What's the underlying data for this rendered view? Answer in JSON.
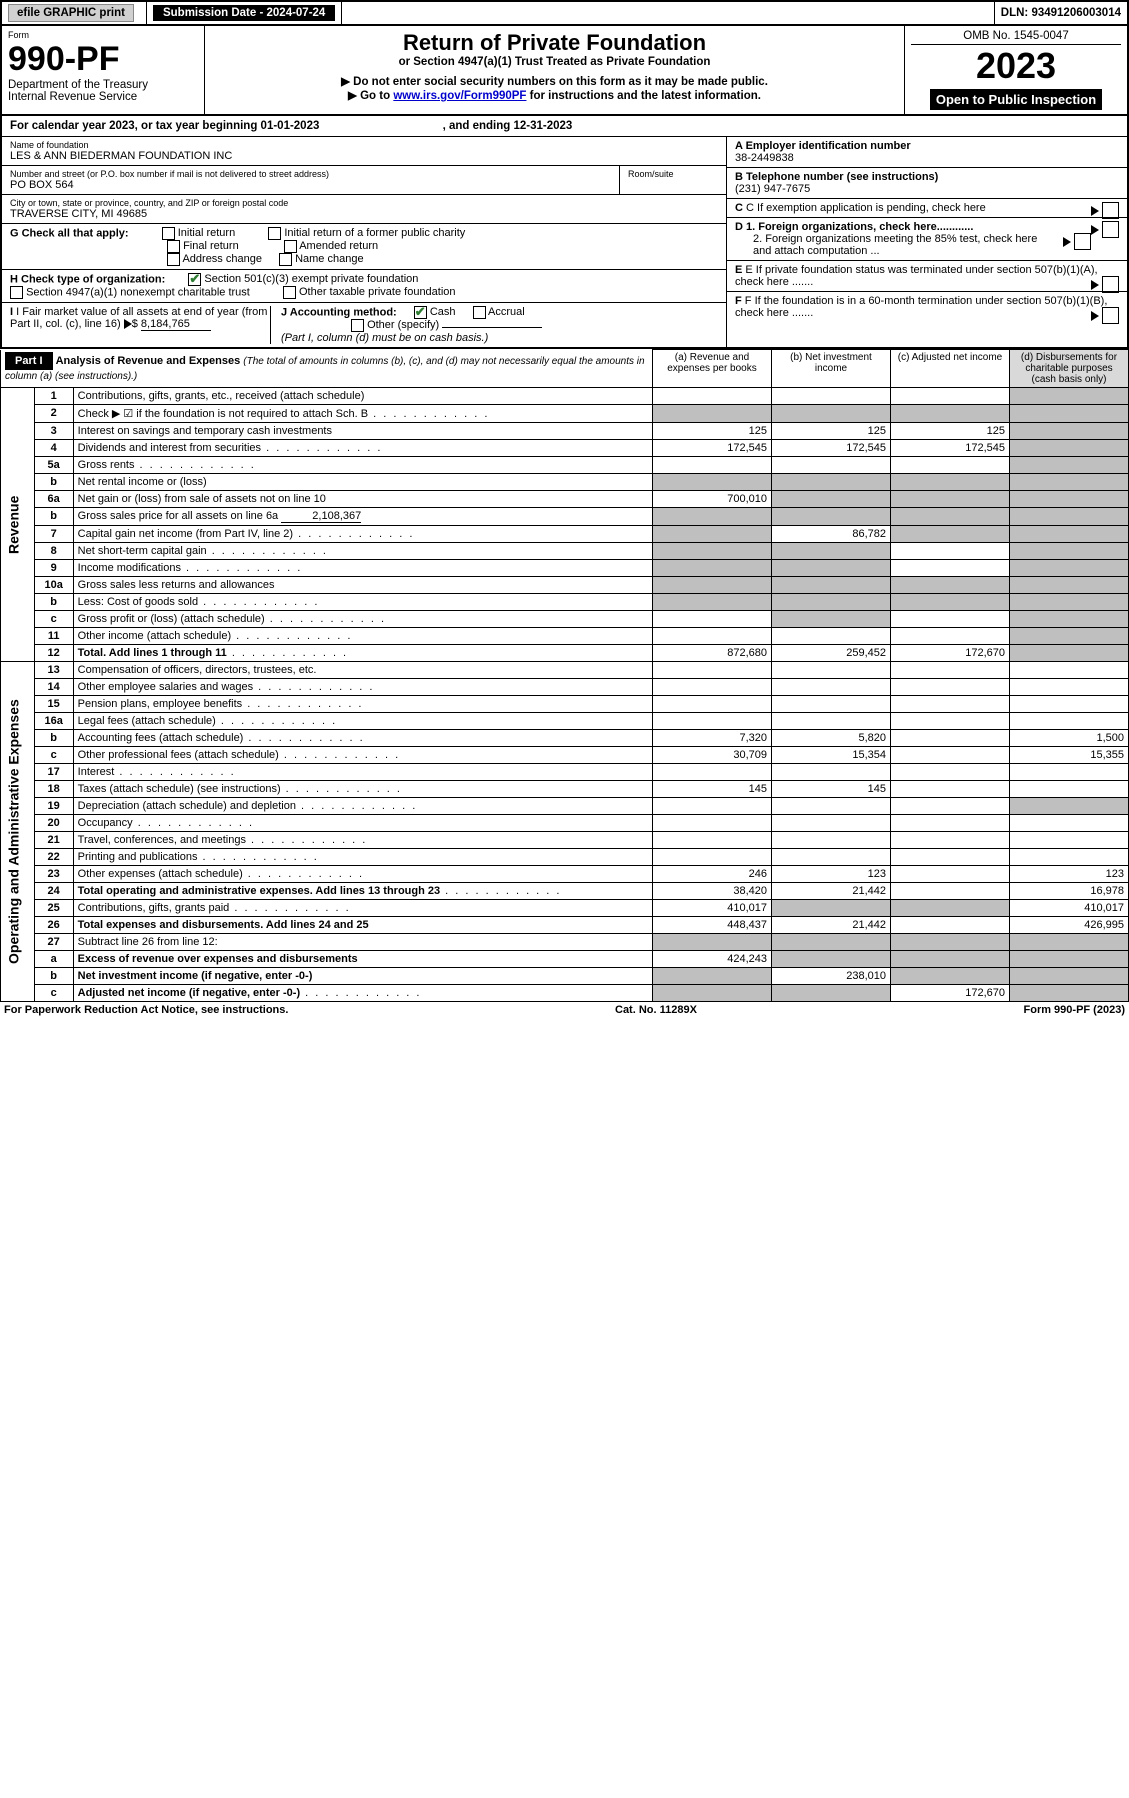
{
  "top": {
    "efile": "efile GRAPHIC print",
    "submission_label": "Submission Date - 2024-07-24",
    "dln": "DLN: 93491206003014"
  },
  "header": {
    "form_label": "Form",
    "form_no": "990-PF",
    "dept": "Department of the Treasury",
    "irs": "Internal Revenue Service",
    "title": "Return of Private Foundation",
    "subtitle": "or Section 4947(a)(1) Trust Treated as Private Foundation",
    "warn": "▶ Do not enter social security numbers on this form as it may be made public.",
    "goto_pre": "▶ Go to ",
    "goto_link": "www.irs.gov/Form990PF",
    "goto_post": " for instructions and the latest information.",
    "omb": "OMB No. 1545-0047",
    "year": "2023",
    "open": "Open to Public Inspection"
  },
  "cal": {
    "line_a": "For calendar year 2023, or tax year beginning 01-01-2023",
    "line_b": ", and ending 12-31-2023"
  },
  "left": {
    "name_label": "Name of foundation",
    "name": "LES & ANN BIEDERMAN FOUNDATION INC",
    "street_label": "Number and street (or P.O. box number if mail is not delivered to street address)",
    "street": "PO BOX 564",
    "room_label": "Room/suite",
    "city_label": "City or town, state or province, country, and ZIP or foreign postal code",
    "city": "TRAVERSE CITY, MI  49685",
    "g": "G Check all that apply:",
    "g_initial": "Initial return",
    "g_initial_former": "Initial return of a former public charity",
    "g_final": "Final return",
    "g_amended": "Amended return",
    "g_address": "Address change",
    "g_name": "Name change",
    "h": "H Check type of organization:",
    "h_501": "Section 501(c)(3) exempt private foundation",
    "h_4947": "Section 4947(a)(1) nonexempt charitable trust",
    "h_other": "Other taxable private foundation",
    "i": "I Fair market value of all assets at end of year (from Part II, col. (c), line 16)",
    "i_val": "8,184,765",
    "j": "J Accounting method:",
    "j_cash": "Cash",
    "j_accrual": "Accrual",
    "j_other": "Other (specify)",
    "j_note": "(Part I, column (d) must be on cash basis.)"
  },
  "right": {
    "a_label": "A Employer identification number",
    "a_val": "38-2449838",
    "b_label": "B Telephone number (see instructions)",
    "b_val": "(231) 947-7675",
    "c_label": "C If exemption application is pending, check here",
    "d1": "D 1. Foreign organizations, check here............",
    "d2": "2. Foreign organizations meeting the 85% test, check here and attach computation ...",
    "e": "E If private foundation status was terminated under section 507(b)(1)(A), check here .......",
    "f": "F If the foundation is in a 60-month termination under section 507(b)(1)(B), check here ......."
  },
  "part1": {
    "tag": "Part I",
    "title": "Analysis of Revenue and Expenses",
    "note": "(The total of amounts in columns (b), (c), and (d) may not necessarily equal the amounts in column (a) (see instructions).)",
    "col_a": "(a) Revenue and expenses per books",
    "col_b": "(b) Net investment income",
    "col_c": "(c) Adjusted net income",
    "col_d": "(d) Disbursements for charitable purposes (cash basis only)"
  },
  "sections": {
    "revenue": "Revenue",
    "opex": "Operating and Administrative Expenses"
  },
  "rows": [
    {
      "n": "1",
      "d": "Contributions, gifts, grants, etc., received (attach schedule)",
      "a": "",
      "b": "",
      "c": "",
      "dcol": "",
      "dgray": true
    },
    {
      "n": "2",
      "d": "Check ▶ ☑ if the foundation is not required to attach Sch. B",
      "dots": true,
      "a": "",
      "b": "",
      "c": "",
      "dcol": "",
      "allgray": true
    },
    {
      "n": "3",
      "d": "Interest on savings and temporary cash investments",
      "a": "125",
      "b": "125",
      "c": "125",
      "dcol": "",
      "dgray": true
    },
    {
      "n": "4",
      "d": "Dividends and interest from securities",
      "dots": true,
      "a": "172,545",
      "b": "172,545",
      "c": "172,545",
      "dcol": "",
      "dgray": true
    },
    {
      "n": "5a",
      "d": "Gross rents",
      "dots": true,
      "a": "",
      "b": "",
      "c": "",
      "dcol": "",
      "dgray": true
    },
    {
      "n": "b",
      "d": "Net rental income or (loss)",
      "inset": true,
      "a": "",
      "b": "",
      "c": "",
      "dcol": "",
      "allgray": true
    },
    {
      "n": "6a",
      "d": "Net gain or (loss) from sale of assets not on line 10",
      "a": "700,010",
      "b": "",
      "c": "",
      "dcol": "",
      "bcgray": true,
      "dgray": true
    },
    {
      "n": "b",
      "d": "Gross sales price for all assets on line 6a",
      "inset": true,
      "inline": "2,108,367",
      "allgray": true
    },
    {
      "n": "7",
      "d": "Capital gain net income (from Part IV, line 2)",
      "dots": true,
      "a": "",
      "b": "86,782",
      "c": "",
      "dcol": "",
      "agray": true,
      "cgray": true,
      "dgray": true
    },
    {
      "n": "8",
      "d": "Net short-term capital gain",
      "dots": true,
      "a": "",
      "b": "",
      "c": "",
      "dcol": "",
      "agray": true,
      "bgray": true,
      "dgray": true
    },
    {
      "n": "9",
      "d": "Income modifications",
      "dots": true,
      "a": "",
      "b": "",
      "c": "",
      "dcol": "",
      "agray": true,
      "bgray": true,
      "dgray": true
    },
    {
      "n": "10a",
      "d": "Gross sales less returns and allowances",
      "inset": true,
      "allgray": true
    },
    {
      "n": "b",
      "d": "Less: Cost of goods sold",
      "dots": true,
      "inset": true,
      "allgray": true
    },
    {
      "n": "c",
      "d": "Gross profit or (loss) (attach schedule)",
      "dots": true,
      "a": "",
      "b": "",
      "c": "",
      "dcol": "",
      "bgray": true,
      "dgray": true
    },
    {
      "n": "11",
      "d": "Other income (attach schedule)",
      "dots": true,
      "a": "",
      "b": "",
      "c": "",
      "dcol": "",
      "dgray": true
    },
    {
      "n": "12",
      "d": "Total. Add lines 1 through 11",
      "dots": true,
      "bold": true,
      "a": "872,680",
      "b": "259,452",
      "c": "172,670",
      "dcol": "",
      "dgray": true
    },
    {
      "n": "13",
      "d": "Compensation of officers, directors, trustees, etc.",
      "a": "",
      "b": "",
      "c": "",
      "dcol": ""
    },
    {
      "n": "14",
      "d": "Other employee salaries and wages",
      "dots": true,
      "a": "",
      "b": "",
      "c": "",
      "dcol": ""
    },
    {
      "n": "15",
      "d": "Pension plans, employee benefits",
      "dots": true,
      "a": "",
      "b": "",
      "c": "",
      "dcol": ""
    },
    {
      "n": "16a",
      "d": "Legal fees (attach schedule)",
      "dots": true,
      "a": "",
      "b": "",
      "c": "",
      "dcol": ""
    },
    {
      "n": "b",
      "d": "Accounting fees (attach schedule)",
      "dots": true,
      "a": "7,320",
      "b": "5,820",
      "c": "",
      "dcol": "1,500"
    },
    {
      "n": "c",
      "d": "Other professional fees (attach schedule)",
      "dots": true,
      "a": "30,709",
      "b": "15,354",
      "c": "",
      "dcol": "15,355"
    },
    {
      "n": "17",
      "d": "Interest",
      "dots": true,
      "a": "",
      "b": "",
      "c": "",
      "dcol": ""
    },
    {
      "n": "18",
      "d": "Taxes (attach schedule) (see instructions)",
      "dots": true,
      "a": "145",
      "b": "145",
      "c": "",
      "dcol": ""
    },
    {
      "n": "19",
      "d": "Depreciation (attach schedule) and depletion",
      "dots": true,
      "a": "",
      "b": "",
      "c": "",
      "dcol": "",
      "dgray": true
    },
    {
      "n": "20",
      "d": "Occupancy",
      "dots": true,
      "a": "",
      "b": "",
      "c": "",
      "dcol": ""
    },
    {
      "n": "21",
      "d": "Travel, conferences, and meetings",
      "dots": true,
      "a": "",
      "b": "",
      "c": "",
      "dcol": ""
    },
    {
      "n": "22",
      "d": "Printing and publications",
      "dots": true,
      "a": "",
      "b": "",
      "c": "",
      "dcol": ""
    },
    {
      "n": "23",
      "d": "Other expenses (attach schedule)",
      "dots": true,
      "a": "246",
      "b": "123",
      "c": "",
      "dcol": "123"
    },
    {
      "n": "24",
      "d": "Total operating and administrative expenses. Add lines 13 through 23",
      "dots": true,
      "bold": true,
      "a": "38,420",
      "b": "21,442",
      "c": "",
      "dcol": "16,978"
    },
    {
      "n": "25",
      "d": "Contributions, gifts, grants paid",
      "dots": true,
      "a": "410,017",
      "b": "",
      "c": "",
      "dcol": "410,017",
      "bcgray": true
    },
    {
      "n": "26",
      "d": "Total expenses and disbursements. Add lines 24 and 25",
      "bold": true,
      "a": "448,437",
      "b": "21,442",
      "c": "",
      "dcol": "426,995"
    },
    {
      "n": "27",
      "d": "Subtract line 26 from line 12:",
      "a": "",
      "b": "",
      "c": "",
      "dcol": "",
      "allshade": true
    },
    {
      "n": "a",
      "d": "Excess of revenue over expenses and disbursements",
      "bold": true,
      "a": "424,243",
      "b": "",
      "c": "",
      "dcol": "",
      "bcgray": true,
      "dgray": true
    },
    {
      "n": "b",
      "d": "Net investment income (if negative, enter -0-)",
      "bold": true,
      "a": "",
      "b": "238,010",
      "c": "",
      "dcol": "",
      "agray": true,
      "cgray": true,
      "dgray": true
    },
    {
      "n": "c",
      "d": "Adjusted net income (if negative, enter -0-)",
      "dots": true,
      "bold": true,
      "a": "",
      "b": "",
      "c": "172,670",
      "dcol": "",
      "agray": true,
      "bgray": true,
      "dgray": true
    }
  ],
  "footer": {
    "left": "For Paperwork Reduction Act Notice, see instructions.",
    "mid": "Cat. No. 11289X",
    "right": "Form 990-PF (2023)"
  },
  "colors": {
    "link": "#0000cc",
    "check": "#2e7d32",
    "gray": "#bfbfbf",
    "shade_d": "#d9d9d9"
  }
}
